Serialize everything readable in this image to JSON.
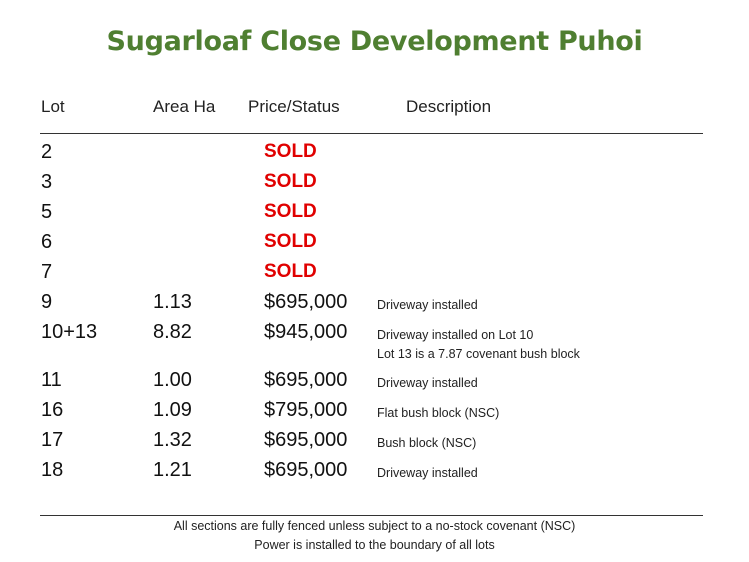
{
  "title": "Sugarloaf Close Development Puhoi",
  "headers": {
    "lot": "Lot",
    "area": "Area Ha",
    "price": "Price/Status",
    "description": "Description"
  },
  "lots": [
    {
      "lot": "2",
      "area": "",
      "price": "SOLD",
      "sold": true,
      "description": "",
      "description2": ""
    },
    {
      "lot": "3",
      "area": "",
      "price": "SOLD",
      "sold": true,
      "description": "",
      "description2": ""
    },
    {
      "lot": "5",
      "area": "",
      "price": "SOLD",
      "sold": true,
      "description": "",
      "description2": ""
    },
    {
      "lot": "6",
      "area": "",
      "price": "SOLD",
      "sold": true,
      "description": "",
      "description2": ""
    },
    {
      "lot": "7",
      "area": "",
      "price": "SOLD",
      "sold": true,
      "description": "",
      "description2": ""
    },
    {
      "lot": "9",
      "area": "1.13",
      "price": "$695,000",
      "sold": false,
      "description": "Driveway installed",
      "description2": ""
    },
    {
      "lot": "10+13",
      "area": "8.82",
      "price": "$945,000",
      "sold": false,
      "description": "Driveway installed on Lot 10",
      "description2": "Lot 13 is a 7.87 covenant bush block"
    },
    {
      "lot": "11",
      "area": "1.00",
      "price": "$695,000",
      "sold": false,
      "description": "Driveway installed",
      "description2": ""
    },
    {
      "lot": "16",
      "area": "1.09",
      "price": "$795,000",
      "sold": false,
      "description": "Flat bush block (NSC)",
      "description2": ""
    },
    {
      "lot": "17",
      "area": "1.32",
      "price": "$695,000",
      "sold": false,
      "description": "Bush block (NSC)",
      "description2": ""
    },
    {
      "lot": "18",
      "area": "1.21",
      "price": "$695,000",
      "sold": false,
      "description": "Driveway installed",
      "description2": ""
    }
  ],
  "footer": {
    "line1": "All sections are fully fenced unless subject to a no-stock covenant (NSC)",
    "line2": "Power is installed to the boundary of all lots"
  },
  "colors": {
    "title": "#4f7f31",
    "sold": "#e00000"
  }
}
